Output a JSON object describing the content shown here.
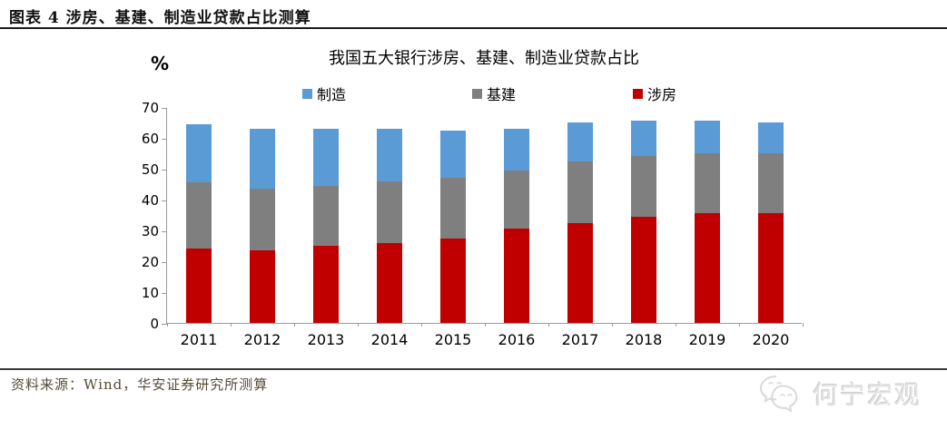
{
  "header": {
    "title": "图表 4 涉房、基建、制造业贷款占比测算"
  },
  "chart": {
    "percent_label": "%",
    "title": "我国五大银行涉房、基建、制造业贷款占比",
    "legend": [
      {
        "label": "制造",
        "color": "#5B9BD5"
      },
      {
        "label": "基建",
        "color": "#7F7F7F"
      },
      {
        "label": "涉房",
        "color": "#C00000"
      }
    ]
  },
  "chart_data": {
    "type": "bar",
    "stacked": true,
    "title": "我国五大银行涉房、基建、制造业贷款占比",
    "ylabel": "%",
    "xlabel": "",
    "ylim": [
      0,
      70
    ],
    "ytick_step": 10,
    "grid": false,
    "legend_position": "top",
    "categories": [
      "2011",
      "2012",
      "2013",
      "2014",
      "2015",
      "2016",
      "2017",
      "2018",
      "2019",
      "2020"
    ],
    "series": [
      {
        "name": "涉房",
        "color": "#C00000",
        "values": [
          24.0,
          23.5,
          25.0,
          26.0,
          27.5,
          30.5,
          32.5,
          34.5,
          35.5,
          35.5
        ]
      },
      {
        "name": "基建",
        "color": "#7F7F7F",
        "values": [
          21.5,
          20.0,
          19.5,
          20.0,
          19.5,
          19.0,
          20.0,
          19.5,
          19.5,
          19.5
        ]
      },
      {
        "name": "制造",
        "color": "#5B9BD5",
        "values": [
          19.0,
          19.5,
          18.5,
          17.0,
          15.5,
          13.5,
          12.5,
          11.5,
          10.5,
          10.0
        ]
      }
    ]
  },
  "footer": {
    "source": "资料来源：Wind，华安证券研究所测算"
  },
  "watermark": {
    "text": "何宁宏观"
  }
}
